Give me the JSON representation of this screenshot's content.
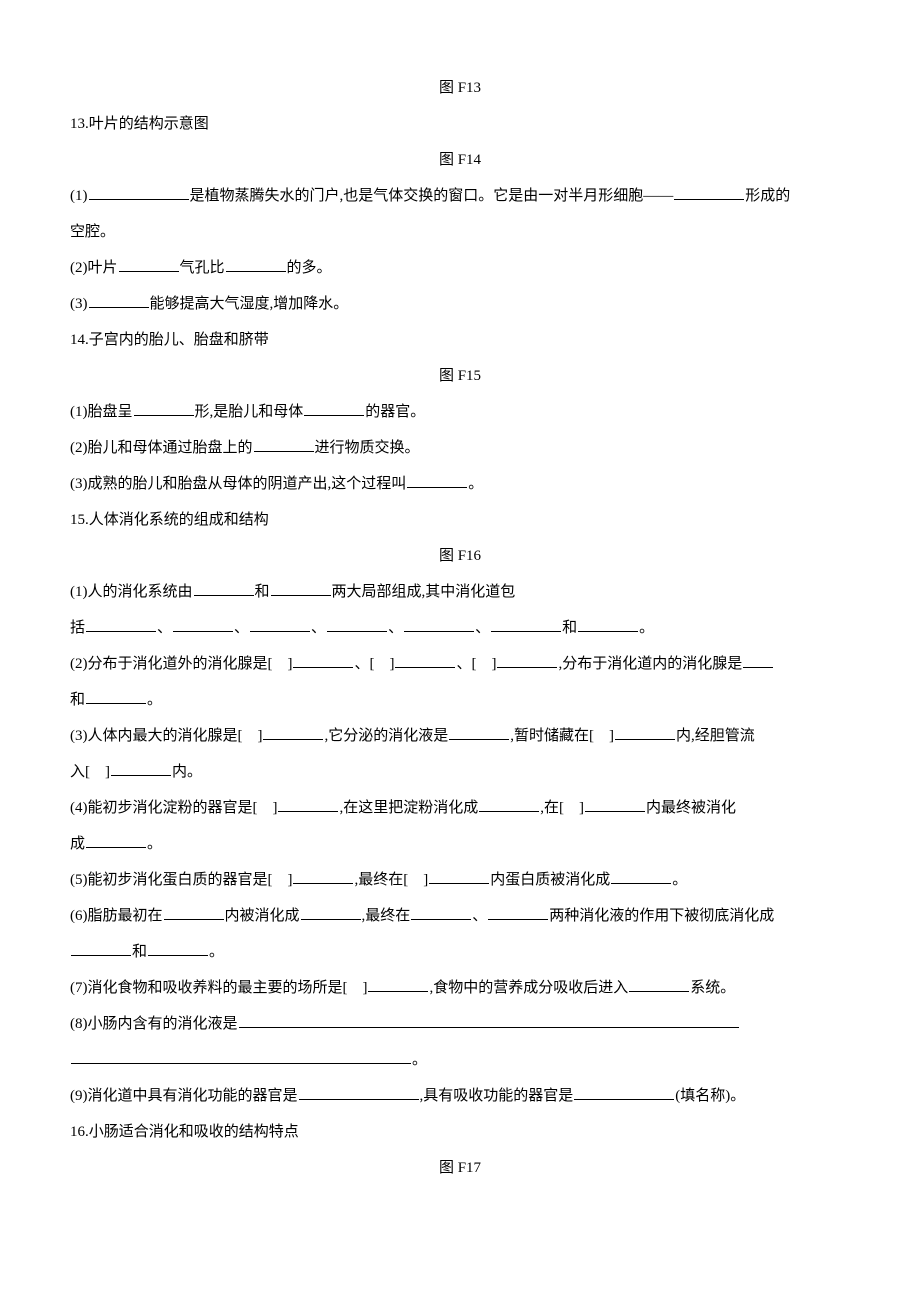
{
  "fig13": "图 F13",
  "q13_title": "13.叶片的结构示意图",
  "fig14": "图 F14",
  "q13_1a": "(1)",
  "q13_1b": "是植物蒸腾失水的门户,也是气体交换的窗口。它是由一对半月形细胞——",
  "q13_1c": "形成的",
  "q13_1d": "空腔。",
  "q13_2a": "(2)叶片",
  "q13_2b": "气孔比",
  "q13_2c": "的多。",
  "q13_3a": "(3)",
  "q13_3b": "能够提高大气湿度,增加降水。",
  "q14_title": "14.子宫内的胎儿、胎盘和脐带",
  "fig15": "图 F15",
  "q14_1a": "(1)胎盘呈",
  "q14_1b": "形,是胎儿和母体",
  "q14_1c": "的器官。",
  "q14_2a": "(2)胎儿和母体通过胎盘上的",
  "q14_2b": "进行物质交换。",
  "q14_3a": "(3)成熟的胎儿和胎盘从母体的阴道产出,这个过程叫",
  "q14_3b": "。",
  "q15_title": "15.人体消化系统的组成和结构",
  "fig16": "图 F16",
  "q15_1a": "(1)人的消化系统由",
  "q15_1b": "和",
  "q15_1c": "两大局部组成,其中消化道包",
  "q15_1d": "括",
  "q15_1e": "和",
  "q15_1f": "。",
  "q15_2a": "(2)分布于消化道外的消化腺是[　]",
  "q15_2b": "、[　]",
  "q15_2c": "、[　]",
  "q15_2d": ",分布于消化道内的消化腺是",
  "q15_2e": "和",
  "q15_2f": "。",
  "q15_3a": "(3)人体内最大的消化腺是[　]",
  "q15_3b": ",它分泌的消化液是",
  "q15_3c": ",暂时储藏在[　]",
  "q15_3d": "内,经胆管流",
  "q15_3e": "入[　]",
  "q15_3f": "内。",
  "q15_4a": "(4)能初步消化淀粉的器官是[　]",
  "q15_4b": ",在这里把淀粉消化成",
  "q15_4c": ",在[　]",
  "q15_4d": "内最终被消化",
  "q15_4e": "成",
  "q15_4f": "。",
  "q15_5a": "(5)能初步消化蛋白质的器官是[　]",
  "q15_5b": ",最终在[　]",
  "q15_5c": "内蛋白质被消化成",
  "q15_5d": "。",
  "q15_6a": "(6)脂肪最初在",
  "q15_6b": "内被消化成",
  "q15_6c": ",最终在",
  "q15_6d": "、",
  "q15_6e": "两种消化液的作用下被彻底消化成",
  "q15_6f": "和",
  "q15_6g": "。",
  "q15_7a": "(7)消化食物和吸收养料的最主要的场所是[　]",
  "q15_7b": ",食物中的营养成分吸收后进入",
  "q15_7c": "系统。",
  "q15_8a": "(8)小肠内含有的消化液是",
  "q15_8b": "。",
  "q15_9a": "(9)消化道中具有消化功能的器官是",
  "q15_9b": ",具有吸收功能的器官是",
  "q15_9c": "(填名称)。",
  "q16_title": "16.小肠适合消化和吸收的结构特点",
  "fig17": "图 F17",
  "sep_comma": "、"
}
